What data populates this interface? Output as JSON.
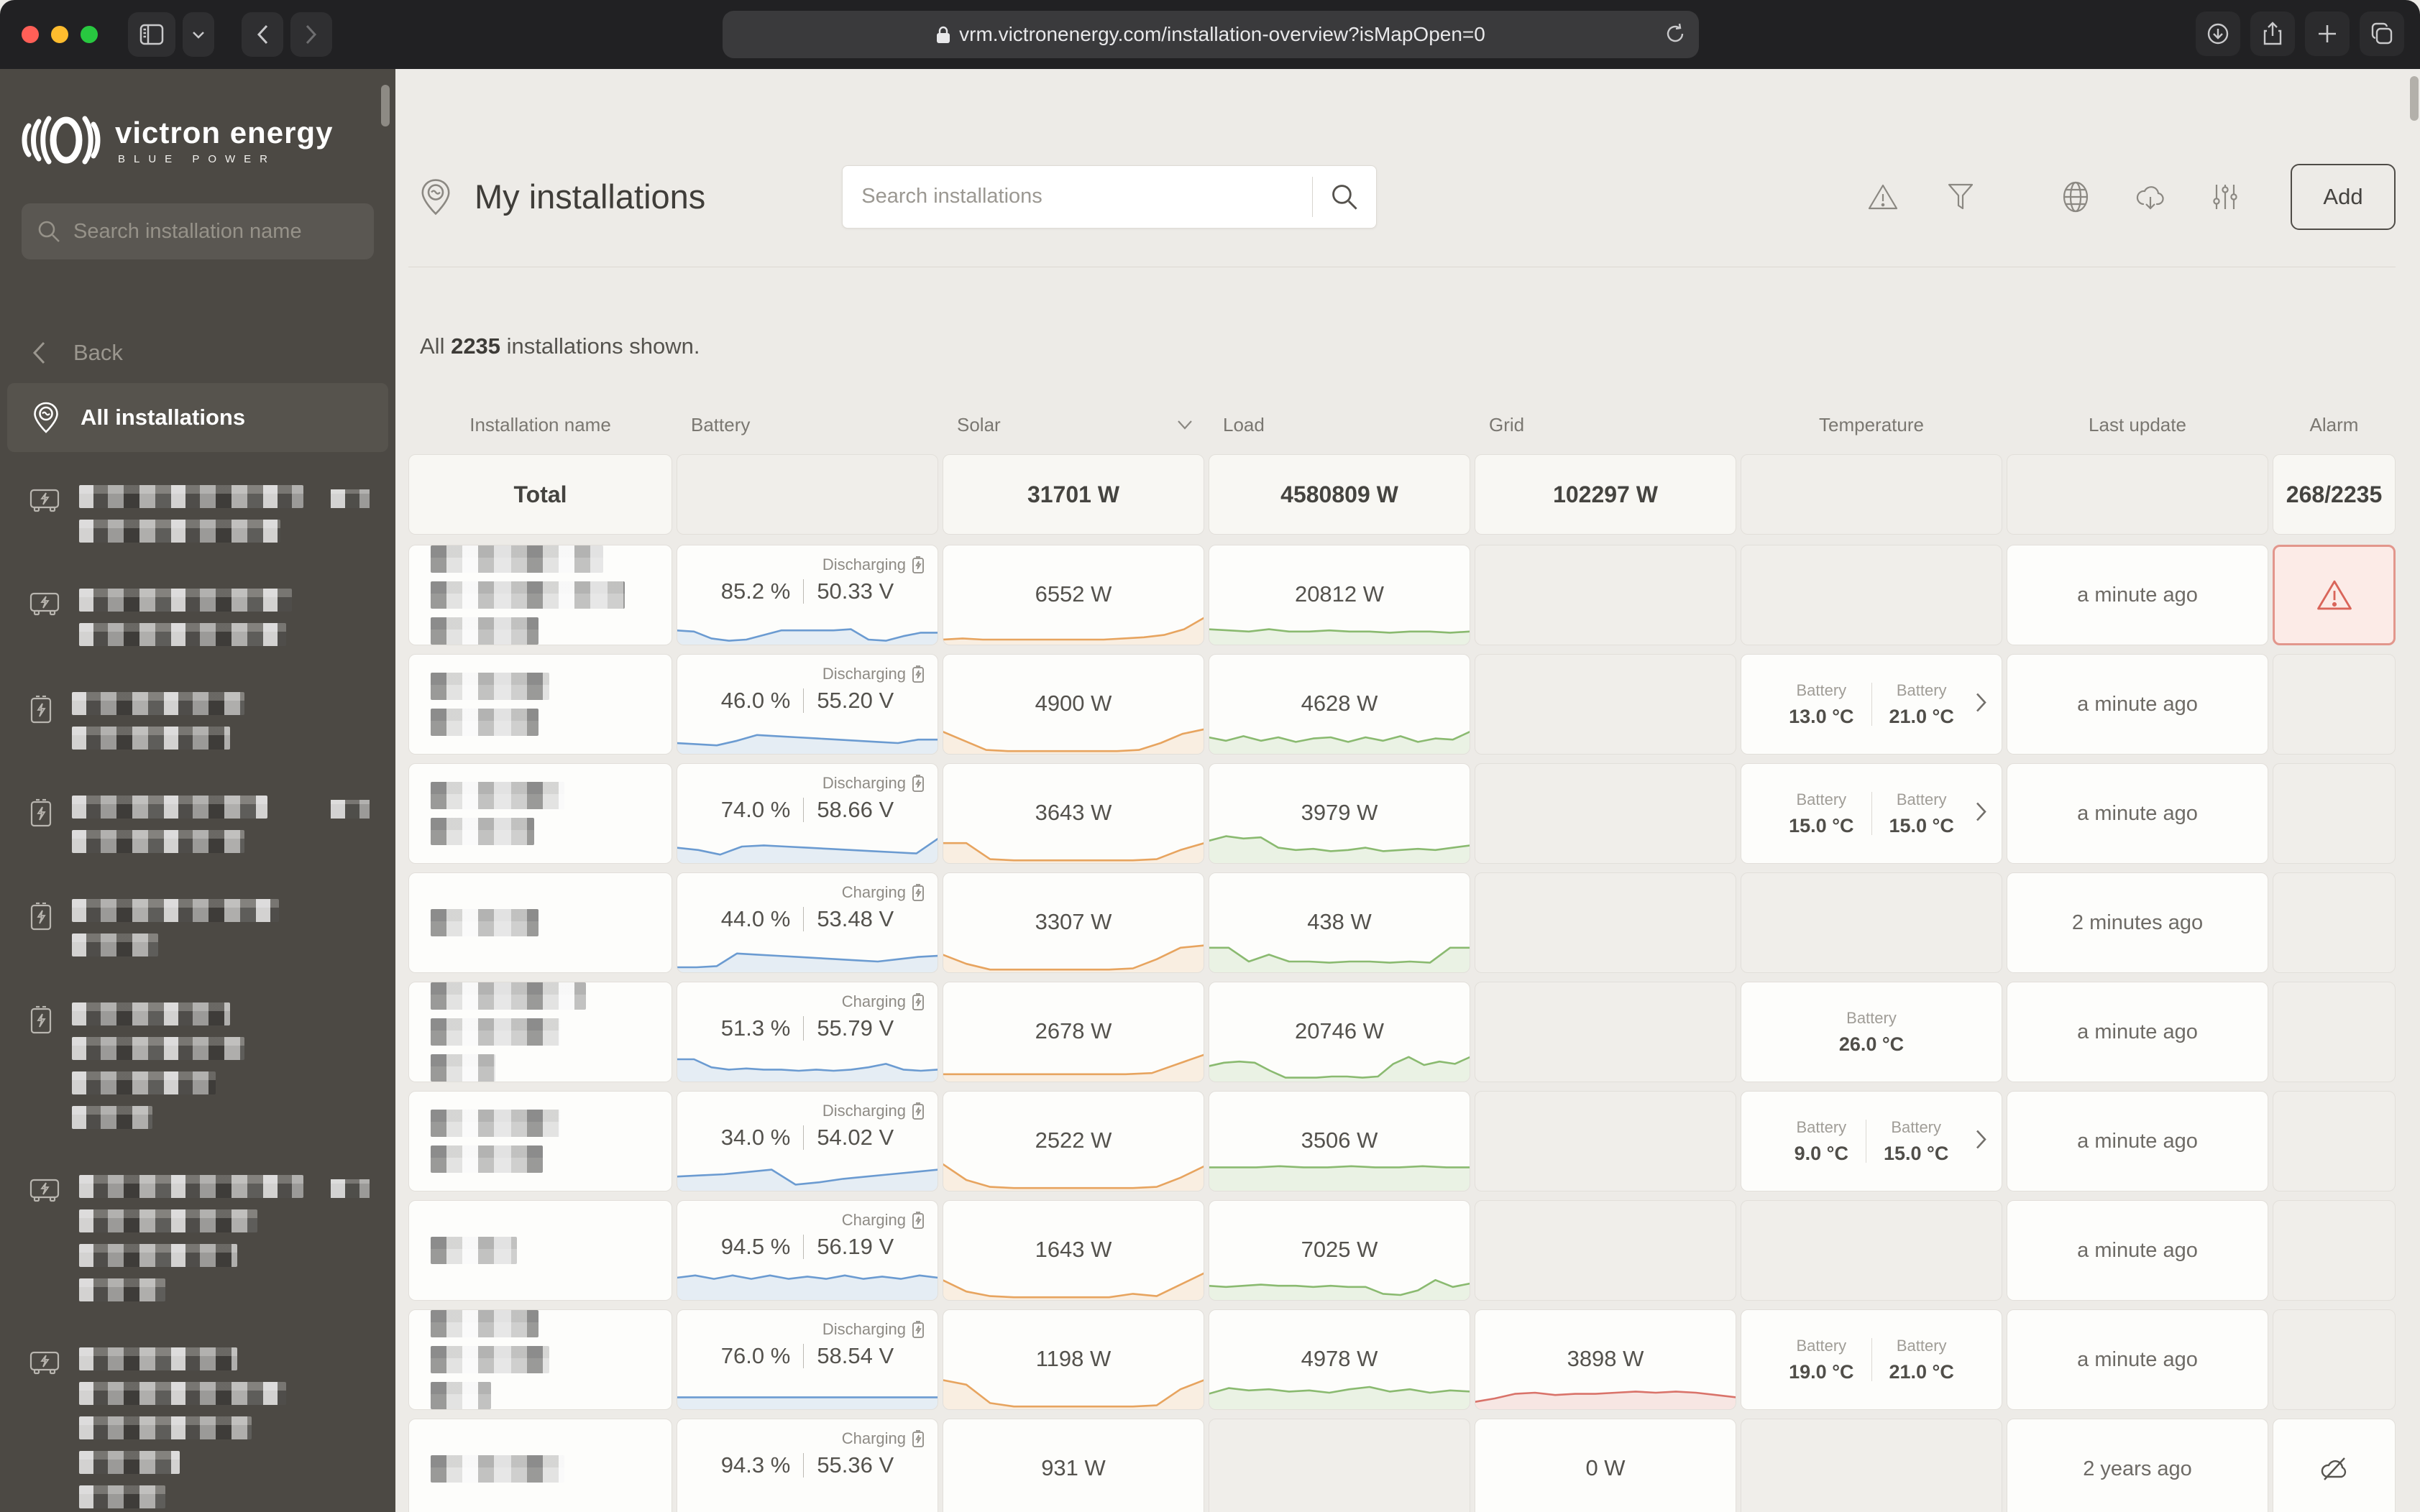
{
  "browser": {
    "url": "vrm.victronenergy.com/installation-overview?isMapOpen=0"
  },
  "sidebar": {
    "logo_title": "victron energy",
    "logo_subtitle": "BLUE POWER",
    "search_placeholder": "Search installation name",
    "back_label": "Back",
    "all_label": "All installations",
    "items": [
      {
        "icon": "inverter-icon",
        "lines": 2,
        "badge": true
      },
      {
        "icon": "inverter-icon",
        "lines": 2,
        "badge": false
      },
      {
        "icon": "battery-icon",
        "lines": 2,
        "badge": false
      },
      {
        "icon": "battery-icon",
        "lines": 2,
        "badge": true
      },
      {
        "icon": "battery-icon",
        "lines": 2,
        "badge": false
      },
      {
        "icon": "battery-icon",
        "lines": 4,
        "badge": false
      },
      {
        "icon": "inverter-icon",
        "lines": 4,
        "badge": true
      },
      {
        "icon": "inverter-icon",
        "lines": 5,
        "badge": false
      }
    ]
  },
  "header": {
    "title": "My installations",
    "search_placeholder": "Search installations",
    "add_label": "Add"
  },
  "summary": {
    "prefix": "All ",
    "count": "2235",
    "suffix": " installations shown."
  },
  "table": {
    "columns": [
      "Installation name",
      "Battery",
      "Solar",
      "Load",
      "Grid",
      "Temperature",
      "Last update",
      "Alarm"
    ],
    "sort_column": "Solar",
    "total": {
      "name": "Total",
      "battery": null,
      "solar": "31701 W",
      "load": "4580809 W",
      "grid": "102297 W",
      "temperature": null,
      "last_update": null,
      "alarm": "268/2235"
    },
    "rows": [
      {
        "battery": {
          "status": "Discharging",
          "soc": "85.2 %",
          "voltage": "50.33 V",
          "spark": [
            13,
            12,
            6,
            4,
            5,
            9,
            13,
            13,
            13,
            13,
            14,
            5,
            4,
            8,
            11,
            11
          ]
        },
        "solar": {
          "value": "6552 W",
          "spark": [
            5,
            6,
            5,
            5,
            5,
            5,
            5,
            5,
            5,
            6,
            7,
            9,
            14,
            24
          ]
        },
        "load": {
          "value": "20812 W",
          "spark": [
            14,
            13,
            12,
            14,
            12,
            12,
            13,
            12,
            12,
            11,
            12,
            12,
            11,
            12
          ]
        },
        "grid": null,
        "temperature": null,
        "last_update": "a minute ago",
        "alarm": "warning"
      },
      {
        "battery": {
          "status": "Discharging",
          "soc": "46.0 %",
          "voltage": "55.20 V",
          "spark": [
            10,
            9,
            8,
            12,
            17,
            16,
            15,
            14,
            13,
            12,
            11,
            10,
            13,
            13
          ]
        },
        "solar": {
          "value": "4900 W",
          "spark": [
            20,
            12,
            4,
            3,
            3,
            3,
            3,
            3,
            3,
            4,
            10,
            18,
            22
          ]
        },
        "load": {
          "value": "4628 W",
          "spark": [
            15,
            12,
            16,
            12,
            15,
            11,
            14,
            15,
            11,
            15,
            12,
            16,
            11,
            14,
            13,
            20
          ]
        },
        "grid": null,
        "temperature": {
          "expand": true,
          "sensors": [
            {
              "label": "Battery",
              "value": "13.0 °C"
            },
            {
              "label": "Battery",
              "value": "21.0 °C"
            }
          ]
        },
        "last_update": "a minute ago",
        "alarm": null
      },
      {
        "battery": {
          "status": "Discharging",
          "soc": "74.0 %",
          "voltage": "58.66 V",
          "spark": [
            14,
            12,
            8,
            15,
            16,
            15,
            14,
            13,
            12,
            11,
            10,
            9,
            22
          ]
        },
        "solar": {
          "value": "3643 W",
          "spark": [
            18,
            18,
            4,
            3,
            3,
            3,
            3,
            3,
            3,
            4,
            12,
            18
          ]
        },
        "load": {
          "value": "3979 W",
          "spark": [
            20,
            24,
            22,
            23,
            14,
            12,
            13,
            11,
            12,
            14,
            11,
            12,
            13,
            12,
            14,
            16
          ]
        },
        "grid": null,
        "temperature": {
          "expand": true,
          "sensors": [
            {
              "label": "Battery",
              "value": "15.0 °C"
            },
            {
              "label": "Battery",
              "value": "15.0 °C"
            }
          ]
        },
        "last_update": "a minute ago",
        "alarm": null
      },
      {
        "battery": {
          "status": "Charging",
          "soc": "44.0 %",
          "voltage": "53.48 V",
          "spark": [
            5,
            5,
            6,
            17,
            16,
            15,
            14,
            13,
            12,
            11,
            10,
            12,
            14,
            15
          ]
        },
        "solar": {
          "value": "3307 W",
          "spark": [
            16,
            8,
            3,
            3,
            3,
            3,
            3,
            3,
            4,
            12,
            22,
            24
          ]
        },
        "load": {
          "value": "438 W",
          "spark": [
            22,
            22,
            10,
            16,
            10,
            10,
            9,
            10,
            10,
            9,
            10,
            9,
            22,
            22
          ]
        },
        "grid": null,
        "temperature": null,
        "last_update": "2 minutes ago",
        "alarm": null
      },
      {
        "battery": {
          "status": "Charging",
          "soc": "51.3 %",
          "voltage": "55.79 V",
          "spark": [
            20,
            20,
            13,
            11,
            12,
            11,
            11,
            10,
            11,
            10,
            11,
            13,
            16,
            11,
            10,
            11
          ]
        },
        "solar": {
          "value": "2678 W",
          "spark": [
            7,
            7,
            7,
            7,
            7,
            7,
            7,
            7,
            8,
            16,
            24
          ]
        },
        "load": {
          "value": "20746 W",
          "spark": [
            14,
            17,
            18,
            17,
            10,
            4,
            4,
            4,
            5,
            5,
            4,
            5,
            16,
            22,
            15,
            18,
            16,
            22
          ]
        },
        "grid": null,
        "temperature": {
          "expand": false,
          "sensors": [
            {
              "label": "Battery",
              "value": "26.0 °C"
            }
          ]
        },
        "last_update": "a minute ago",
        "alarm": null
      },
      {
        "battery": {
          "status": "Discharging",
          "soc": "34.0 %",
          "voltage": "54.02 V",
          "spark": [
            13,
            14,
            15,
            17,
            19,
            6,
            8,
            11,
            13,
            15,
            17,
            19
          ]
        },
        "solar": {
          "value": "2522 W",
          "spark": [
            24,
            10,
            4,
            3,
            3,
            3,
            3,
            3,
            3,
            4,
            12,
            22
          ]
        },
        "load": {
          "value": "3506 W",
          "spark": [
            21,
            21,
            21,
            22,
            21,
            21,
            22,
            21,
            21,
            22,
            21,
            21
          ]
        },
        "grid": null,
        "temperature": {
          "expand": true,
          "sensors": [
            {
              "label": "Battery",
              "value": "9.0 °C"
            },
            {
              "label": "Battery",
              "value": "15.0 °C"
            }
          ]
        },
        "last_update": "a minute ago",
        "alarm": null
      },
      {
        "battery": {
          "status": "Charging",
          "soc": "94.5 %",
          "voltage": "56.19 V",
          "spark": [
            20,
            22,
            19,
            22,
            19,
            22,
            19,
            21,
            19,
            22,
            19,
            21,
            19,
            22,
            20
          ]
        },
        "solar": {
          "value": "1643 W",
          "spark": [
            18,
            8,
            4,
            3,
            3,
            3,
            3,
            3,
            6,
            4,
            14,
            24
          ]
        },
        "load": {
          "value": "7025 W",
          "spark": [
            13,
            12,
            13,
            14,
            13,
            13,
            12,
            13,
            12,
            12,
            6,
            5,
            9,
            18,
            12,
            15
          ]
        },
        "grid": null,
        "temperature": null,
        "last_update": "a minute ago",
        "alarm": null
      },
      {
        "battery": {
          "status": "Discharging",
          "soc": "76.0 %",
          "voltage": "58.54 V",
          "spark": [
            11,
            11,
            11,
            11,
            11,
            11,
            11,
            11,
            11,
            11
          ]
        },
        "solar": {
          "value": "1198 W",
          "spark": [
            26,
            22,
            6,
            3,
            3,
            3,
            3,
            3,
            3,
            4,
            18,
            26
          ]
        },
        "load": {
          "value": "4978 W",
          "spark": [
            14,
            19,
            17,
            18,
            16,
            17,
            15,
            18,
            20,
            16,
            18,
            15,
            17,
            16
          ]
        },
        "grid": {
          "value": "3898 W",
          "spark": [
            7,
            10,
            14,
            15,
            13,
            14,
            14,
            15,
            16,
            15,
            16,
            15,
            13,
            11
          ]
        },
        "temperature": {
          "expand": false,
          "sensors": [
            {
              "label": "Battery",
              "value": "19.0 °C"
            },
            {
              "label": "Battery",
              "value": "21.0 °C"
            }
          ]
        },
        "last_update": "a minute ago",
        "alarm": null
      },
      {
        "battery": {
          "status": "Charging",
          "soc": "94.3 %",
          "voltage": "55.36 V",
          "spark": null
        },
        "solar": {
          "value": "931 W",
          "spark": null
        },
        "load": null,
        "grid": {
          "value": "0 W",
          "spark": null
        },
        "temperature": null,
        "last_update": "2 years ago",
        "alarm": "offline"
      }
    ]
  },
  "colors": {
    "battery_spark": "#6b9bd1",
    "solar_spark": "#e7a45f",
    "load_spark": "#8aba70",
    "grid_alert_spark": "#d9736a",
    "alarm_red": "#d9655a",
    "sidebar_bg": "#4c4944",
    "main_bg": "#edebe7"
  }
}
